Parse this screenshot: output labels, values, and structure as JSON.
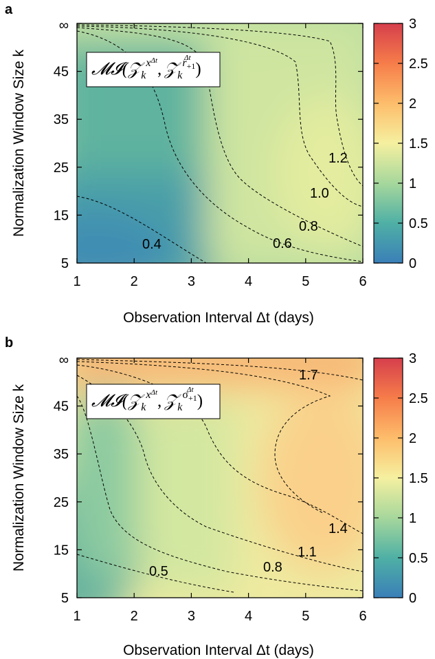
{
  "chart_data": [
    {
      "panel": "a",
      "type": "heatmap",
      "annotation": "𝓜𝓘(𝒵ₖ^(xΔt), 𝒵ₖ^(rΔt+1))",
      "annotation_parts": {
        "func": "𝓜𝓘(",
        "z": "𝒵",
        "sub": "k",
        "sup1": "x",
        "sup1_t": "Δt",
        "sep": ",",
        "sup2_top": "Δt",
        "sup2_r": "r",
        "sup2_sub": "+1",
        "close": ")"
      },
      "xlabel": "Observation Interval Δt (days)",
      "ylabel": "Normalization Window Size k",
      "x_ticks": [
        "1",
        "2",
        "3",
        "4",
        "5",
        "6"
      ],
      "y_ticks": [
        "5",
        "15",
        "25",
        "35",
        "45",
        "∞"
      ],
      "xlim": [
        1,
        6
      ],
      "y_categories": [
        5,
        15,
        25,
        35,
        45,
        "∞"
      ],
      "colorbar": {
        "range": [
          0,
          3
        ],
        "ticks": [
          "0",
          "0.5",
          "1",
          "1.5",
          "2",
          "2.5",
          "3"
        ],
        "colormap": [
          "#3a7fb8",
          "#4fb0a5",
          "#a6d79c",
          "#f5f0a0",
          "#fdbd6b",
          "#f67d4a",
          "#d63f4c"
        ]
      },
      "contour_labels": [
        "0.4",
        "0.6",
        "0.8",
        "1.0",
        "1.2"
      ],
      "values_grid": {
        "x": [
          1,
          2,
          3,
          4,
          5,
          6
        ],
        "y": [
          5,
          15,
          25,
          35,
          45,
          "∞"
        ],
        "z": [
          [
            0.35,
            0.4,
            0.5,
            0.6,
            0.7,
            0.8
          ],
          [
            0.45,
            0.5,
            0.6,
            0.75,
            0.85,
            0.95
          ],
          [
            0.5,
            0.55,
            0.7,
            0.85,
            1.0,
            1.25
          ],
          [
            0.55,
            0.6,
            0.75,
            0.9,
            1.0,
            1.3
          ],
          [
            0.55,
            0.65,
            0.8,
            0.95,
            1.05,
            1.3
          ],
          [
            0.8,
            0.9,
            1.0,
            1.1,
            1.2,
            1.35
          ]
        ]
      }
    },
    {
      "panel": "b",
      "type": "heatmap",
      "annotation": "𝓜𝓘(𝒵ₖ^(xΔt), 𝒵ₖ^(σΔt+1))",
      "annotation_parts": {
        "func": "𝓜𝓘(",
        "z": "𝒵",
        "sub": "k",
        "sup1": "x",
        "sup1_t": "Δt",
        "sep": ",",
        "sup2_top": "Δt",
        "sup2_r": "σ",
        "sup2_sub": "+1",
        "close": ")"
      },
      "xlabel": "Observation Interval Δt (days)",
      "ylabel": "Normalization Window Size k",
      "x_ticks": [
        "1",
        "2",
        "3",
        "4",
        "5",
        "6"
      ],
      "y_ticks": [
        "5",
        "15",
        "25",
        "35",
        "45",
        "∞"
      ],
      "xlim": [
        1,
        6
      ],
      "y_categories": [
        5,
        15,
        25,
        35,
        45,
        "∞"
      ],
      "colorbar": {
        "range": [
          0,
          3
        ],
        "ticks": [
          "0",
          "0.5",
          "1",
          "1.5",
          "2",
          "2.5",
          "3"
        ],
        "colormap": [
          "#3a7fb8",
          "#4fb0a5",
          "#a6d79c",
          "#f5f0a0",
          "#fdbd6b",
          "#f67d4a",
          "#d63f4c"
        ]
      },
      "contour_labels": [
        "0.5",
        "0.8",
        "1.1",
        "1.4",
        "1.7"
      ],
      "values_grid": {
        "x": [
          1,
          2,
          3,
          4,
          5,
          6
        ],
        "y": [
          5,
          15,
          25,
          35,
          45,
          "∞"
        ],
        "z": [
          [
            0.45,
            0.6,
            0.8,
            0.95,
            1.1,
            1.2
          ],
          [
            0.55,
            0.8,
            1.05,
            1.25,
            1.35,
            1.4
          ],
          [
            0.6,
            0.9,
            1.15,
            1.35,
            1.5,
            1.55
          ],
          [
            0.65,
            0.95,
            1.2,
            1.4,
            1.55,
            1.55
          ],
          [
            0.7,
            1.0,
            1.25,
            1.4,
            1.5,
            1.5
          ],
          [
            1.5,
            1.6,
            1.65,
            1.7,
            1.75,
            1.8
          ]
        ]
      }
    }
  ]
}
